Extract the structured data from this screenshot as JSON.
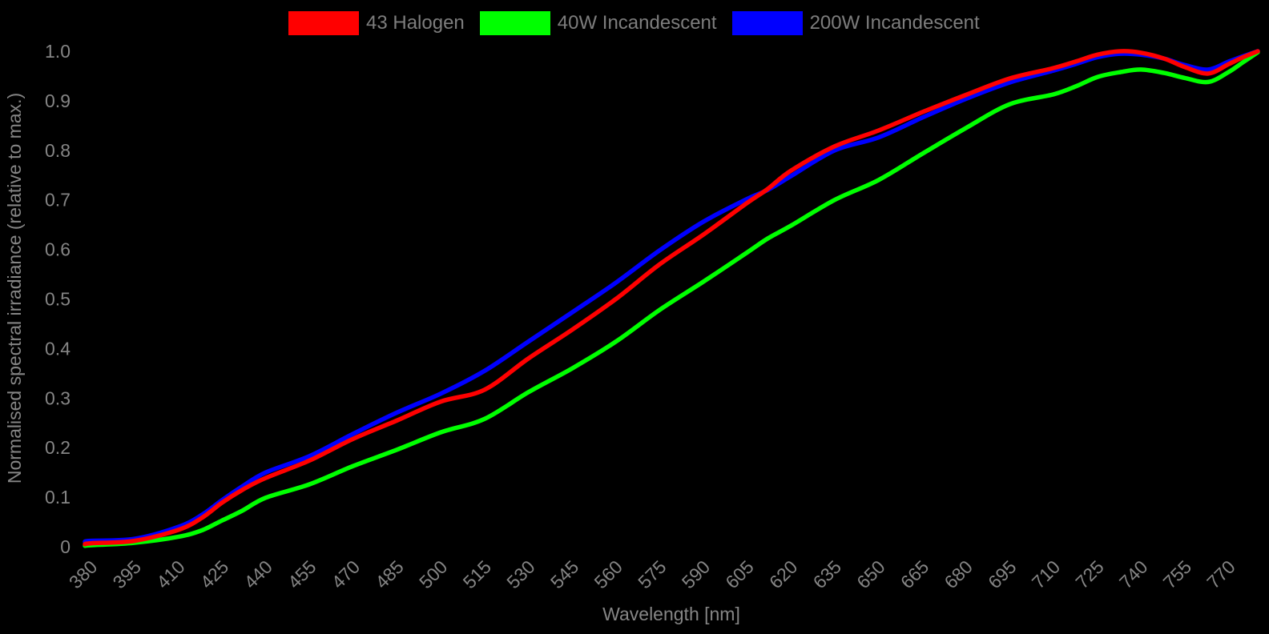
{
  "chart_data": {
    "type": "line",
    "title": "",
    "xlabel": "Wavelength [nm]",
    "ylabel": "Normalised spectral irradiance (relative to max.)",
    "xlim": [
      378,
      780
    ],
    "ylim": [
      0,
      1.0
    ],
    "grid": false,
    "legend_position": "top-horizontal",
    "background_color": "#000000",
    "text_color": "#858585",
    "xticks": [
      380,
      395,
      410,
      425,
      440,
      455,
      470,
      485,
      500,
      515,
      530,
      545,
      560,
      575,
      590,
      605,
      620,
      635,
      650,
      665,
      680,
      695,
      710,
      725,
      740,
      755,
      770
    ],
    "yticks": [
      "0",
      "0.1",
      "0.2",
      "0.3",
      "0.4",
      "0.5",
      "0.6",
      "0.7",
      "0.8",
      "0.9",
      "1.0"
    ],
    "x": [
      378,
      380,
      395,
      410,
      418,
      425,
      432,
      440,
      455,
      470,
      485,
      500,
      515,
      530,
      545,
      560,
      575,
      590,
      605,
      612,
      620,
      635,
      650,
      665,
      680,
      695,
      710,
      718,
      725,
      733,
      740,
      748,
      755,
      763,
      770,
      775,
      780
    ],
    "series": [
      {
        "name": "43 Halogen",
        "color": "#ff0000",
        "values": [
          0.005,
          0.007,
          0.012,
          0.034,
          0.058,
          0.089,
          0.115,
          0.139,
          0.174,
          0.218,
          0.255,
          0.293,
          0.317,
          0.38,
          0.438,
          0.5,
          0.57,
          0.63,
          0.694,
          0.722,
          0.759,
          0.808,
          0.84,
          0.877,
          0.912,
          0.945,
          0.966,
          0.98,
          0.993,
          1.0,
          0.997,
          0.985,
          0.968,
          0.955,
          0.974,
          0.988,
          1.0
        ]
      },
      {
        "name": "40W Incandescent",
        "color": "#00ff00",
        "values": [
          0.002,
          0.003,
          0.008,
          0.02,
          0.033,
          0.053,
          0.073,
          0.099,
          0.126,
          0.163,
          0.196,
          0.231,
          0.258,
          0.312,
          0.36,
          0.414,
          0.478,
          0.535,
          0.594,
          0.622,
          0.648,
          0.7,
          0.74,
          0.793,
          0.845,
          0.893,
          0.913,
          0.93,
          0.948,
          0.958,
          0.963,
          0.956,
          0.946,
          0.938,
          0.958,
          0.978,
          0.998
        ]
      },
      {
        "name": "200W Incandescent",
        "color": "#0000ff",
        "values": [
          0.01,
          0.012,
          0.016,
          0.04,
          0.064,
          0.094,
          0.122,
          0.15,
          0.183,
          0.228,
          0.271,
          0.309,
          0.355,
          0.414,
          0.473,
          0.533,
          0.598,
          0.656,
          0.702,
          0.72,
          0.748,
          0.8,
          0.826,
          0.866,
          0.904,
          0.937,
          0.961,
          0.975,
          0.988,
          0.995,
          0.993,
          0.985,
          0.972,
          0.963,
          0.979,
          0.99,
          1.0
        ]
      }
    ]
  }
}
